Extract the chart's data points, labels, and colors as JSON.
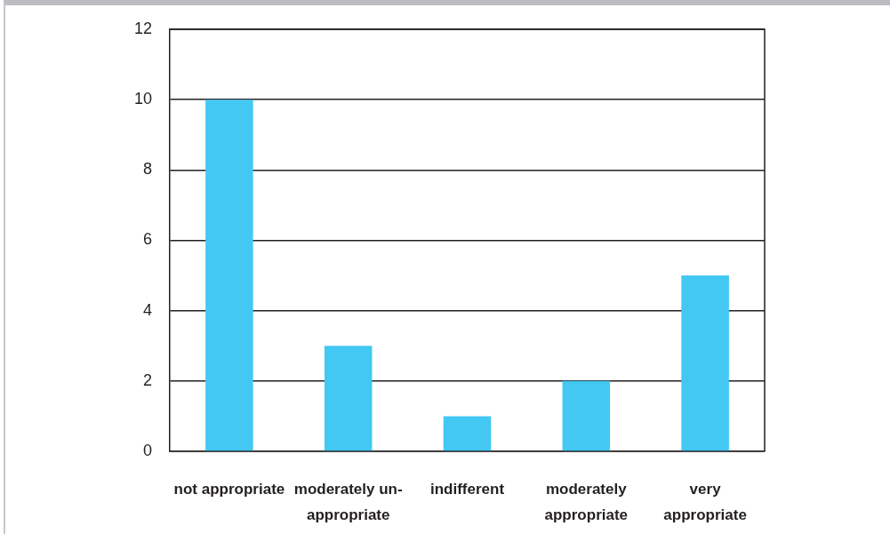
{
  "chart_data": {
    "type": "bar",
    "categories": [
      "not appropriate",
      "moderately un-appropriate",
      "indifferent",
      "moderately appropriate",
      "very appropriate"
    ],
    "values": [
      10,
      3,
      1,
      2,
      5
    ],
    "color": "#42c8f3",
    "ylim": [
      0,
      12
    ],
    "yticks": [
      0,
      2,
      4,
      6,
      8,
      10,
      12
    ],
    "grid": "y"
  }
}
